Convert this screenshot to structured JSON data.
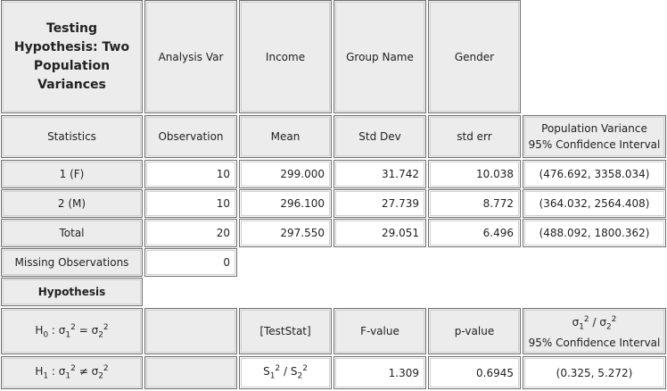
{
  "header": {
    "title": "Testing Hypothesis: Two Population Variances",
    "analysis_var": "Analysis Var",
    "income": "Income",
    "group_name": "Group Name",
    "gender": "Gender"
  },
  "columns": {
    "statistics": "Statistics",
    "observation": "Observation",
    "mean": "Mean",
    "std_dev": "Std Dev",
    "std_err": "std err",
    "ci_line1": "Population Variance",
    "ci_line2": "95% Confidence Interval"
  },
  "rows": [
    {
      "label": "1 (F)",
      "observation": "10",
      "mean": "299.000",
      "std_dev": "31.742",
      "std_err": "10.038",
      "ci": "(476.692, 3358.034)"
    },
    {
      "label": "2 (M)",
      "observation": "10",
      "mean": "296.100",
      "std_dev": "27.739",
      "std_err": "8.772",
      "ci": "(364.032, 2564.408)"
    },
    {
      "label": "Total",
      "observation": "20",
      "mean": "297.550",
      "std_dev": "29.051",
      "std_err": "6.496",
      "ci": "(488.092, 1800.362)"
    }
  ],
  "missing": {
    "label": "Missing Observations",
    "value": "0"
  },
  "hypothesis": {
    "title": "Hypothesis",
    "h0_label": "H",
    "h0_sub": "0",
    "h1_label": "H",
    "h1_sub": "1",
    "sigma1": "σ",
    "sigma2": "σ",
    "sub1": "1",
    "sub2": "2",
    "sup": "2",
    "eq": "=",
    "neq": "≠",
    "test_stat": "[TestStat]",
    "f_value_label": "F-value",
    "p_value_label": "p-value",
    "ratio_ci_line2": "95% Confidence Interval",
    "s_sym": "S",
    "f_value": "1.309",
    "p_value": "0.6945",
    "ratio_ci": "(0.325, 5.272)"
  }
}
